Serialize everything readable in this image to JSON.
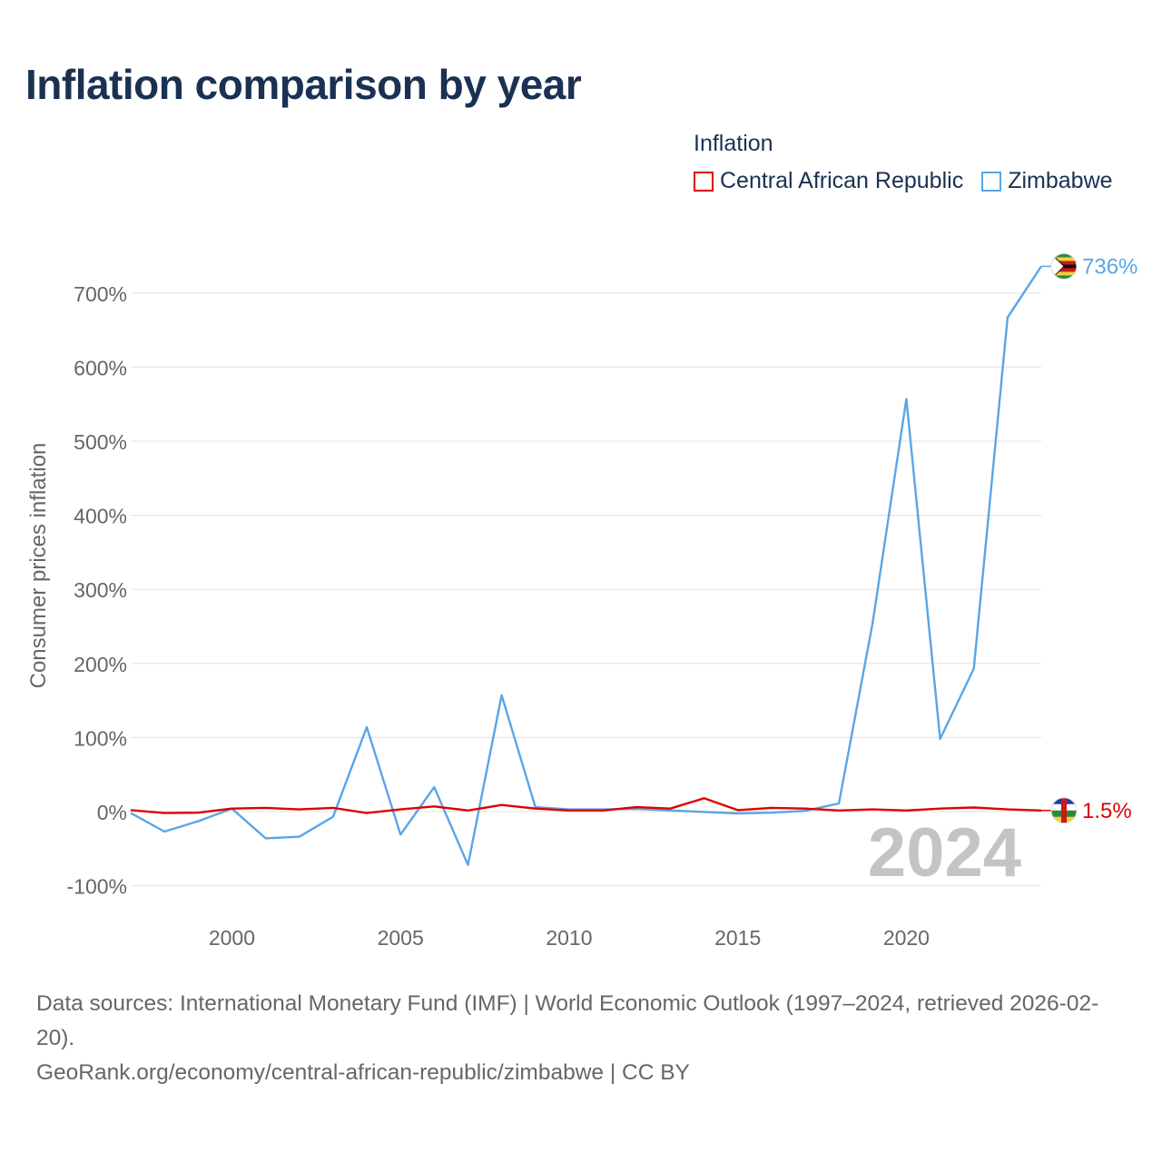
{
  "title": "Inflation comparison by year",
  "legend": {
    "title": "Inflation",
    "items": [
      {
        "label": "Central African Republic",
        "color": "#e00000"
      },
      {
        "label": "Zimbabwe",
        "color": "#5aa5e6"
      }
    ]
  },
  "chart_data": {
    "type": "line",
    "title": "Inflation comparison by year",
    "xlabel": "",
    "ylabel": "Consumer prices inflation",
    "x": [
      1997,
      1998,
      1999,
      2000,
      2001,
      2002,
      2003,
      2004,
      2005,
      2006,
      2007,
      2008,
      2009,
      2010,
      2011,
      2012,
      2013,
      2014,
      2015,
      2016,
      2017,
      2018,
      2019,
      2020,
      2021,
      2022,
      2023,
      2024
    ],
    "xlim": [
      1997,
      2024
    ],
    "ylim": [
      -100,
      750
    ],
    "yticks": [
      -100,
      0,
      100,
      200,
      300,
      400,
      500,
      600,
      700
    ],
    "ytick_labels": [
      "-100%",
      "0%",
      "100%",
      "200%",
      "300%",
      "400%",
      "500%",
      "600%",
      "700%"
    ],
    "xticks": [
      2000,
      2005,
      2010,
      2015,
      2020
    ],
    "xtick_labels": [
      "2000",
      "2005",
      "2010",
      "2015",
      "2020"
    ],
    "grid": true,
    "year_watermark": "2024",
    "series": [
      {
        "name": "Central African Republic",
        "color": "#e00000",
        "values": [
          2,
          -2,
          -1.5,
          4,
          5,
          3,
          5,
          -2,
          3,
          7,
          1.5,
          9,
          4,
          1.5,
          1.5,
          6,
          4,
          18,
          2,
          5,
          4,
          1.5,
          3,
          1.5,
          4,
          5.5,
          3,
          1.5
        ],
        "end_label": "1.5%"
      },
      {
        "name": "Zimbabwe",
        "color": "#5aa5e6",
        "values": [
          -2,
          -27,
          -13,
          4,
          -36,
          -34,
          -7,
          114,
          -31,
          33,
          -72,
          157,
          6,
          3,
          3,
          3.5,
          1.5,
          -0.5,
          -2.5,
          -1.5,
          1,
          11,
          255,
          557,
          98,
          193,
          667,
          736
        ],
        "end_label": "736%"
      }
    ]
  },
  "footer": {
    "line1": "Data sources: International Monetary Fund (IMF) | World Economic Outlook (1997–2024, retrieved 2026-02-20).",
    "line2": "GeoRank.org/economy/central-african-republic/zimbabwe | CC BY"
  }
}
